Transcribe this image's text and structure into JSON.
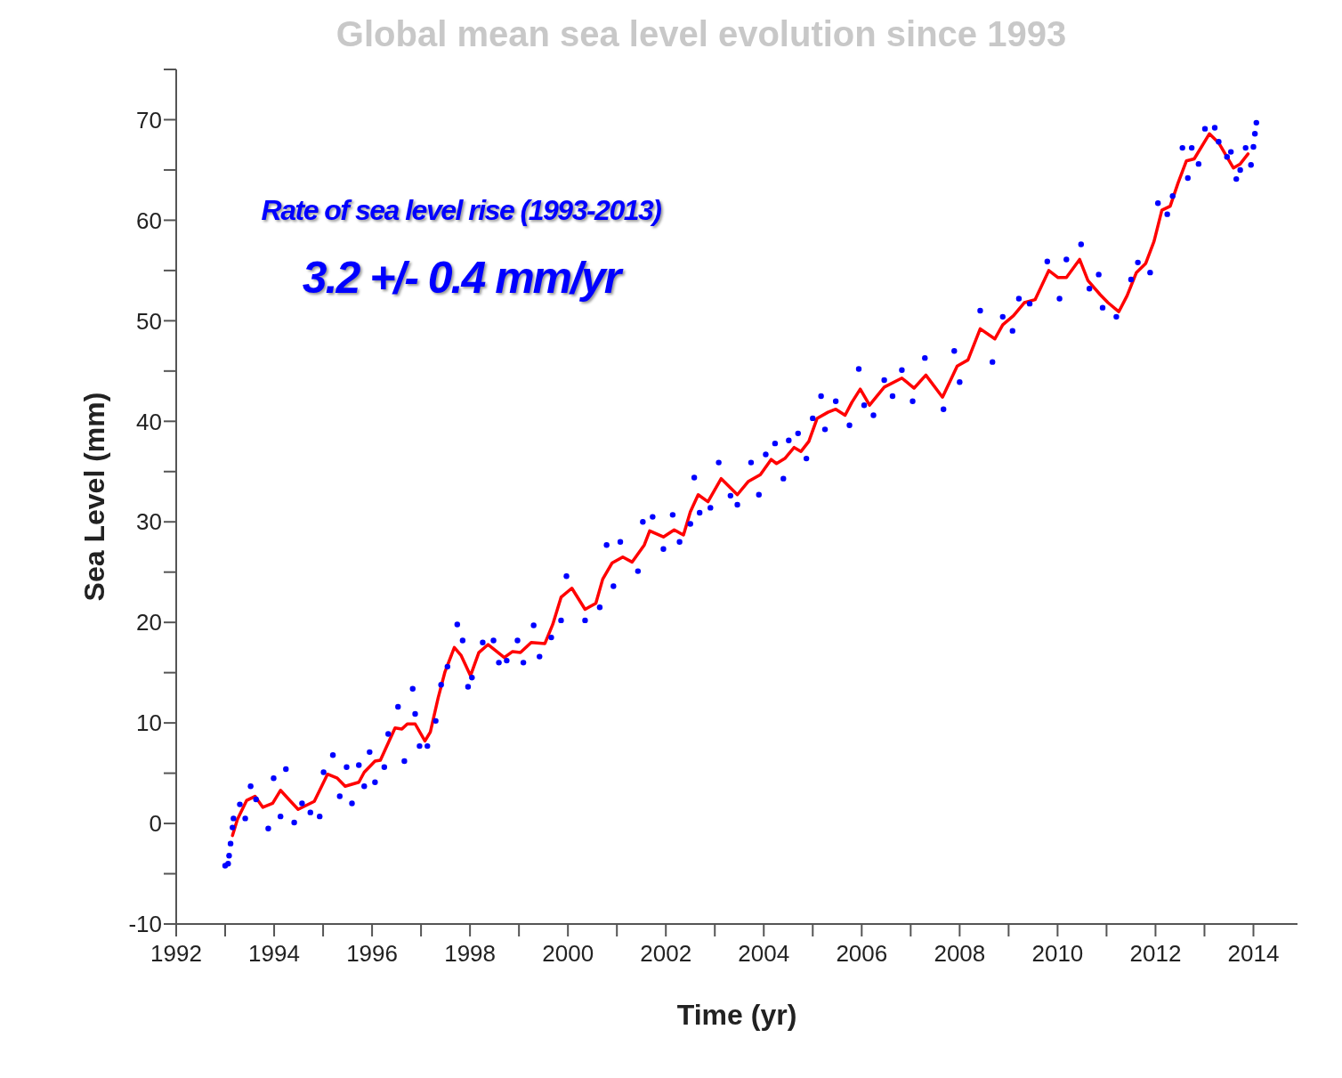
{
  "chart_data": {
    "type": "scatter",
    "title": "Global mean sea level evolution since 1993",
    "xlabel": "Time (yr)",
    "ylabel": "Sea Level (mm)",
    "annotations": [
      "Rate of sea level rise (1993-2013)",
      "3.2 +/- 0.4 mm/yr"
    ],
    "xlim": [
      1992,
      2014.9
    ],
    "xticks": [
      1992,
      {
        "value": 1993,
        "label": null
      },
      1994,
      {
        "value": 1995,
        "label": null
      },
      1996,
      {
        "value": 1997,
        "label": null
      },
      1998,
      {
        "value": 1999,
        "label": null
      },
      2000,
      {
        "value": 2001,
        "label": null
      },
      2002,
      {
        "value": 2003,
        "label": null
      },
      2004,
      {
        "value": 2005,
        "label": null
      },
      2006,
      {
        "value": 2007,
        "label": null
      },
      2008,
      {
        "value": 2009,
        "label": null
      },
      2010,
      {
        "value": 2011,
        "label": null
      },
      2012,
      {
        "value": 2013,
        "label": null
      },
      2014
    ],
    "ylim": [
      -10,
      75
    ],
    "yticks": [
      -10,
      {
        "value": -5,
        "label": null
      },
      0,
      {
        "value": 5,
        "label": null
      },
      10,
      {
        "value": 15,
        "label": null
      },
      20,
      {
        "value": 25,
        "label": null
      },
      30,
      {
        "value": 35,
        "label": null
      },
      40,
      {
        "value": 45,
        "label": null
      },
      50,
      {
        "value": 55,
        "label": null
      },
      60,
      {
        "value": 65,
        "label": null
      },
      70,
      {
        "value": 75,
        "label": null
      }
    ],
    "grid": false,
    "legend": false,
    "series": [
      {
        "marker": "circle",
        "color": "#0000ff",
        "x": [
          1993.0,
          1993.06,
          1993.08,
          1993.11,
          1993.15,
          1993.17,
          1993.3,
          1993.41,
          1993.52,
          1993.63,
          1993.88,
          1993.99,
          1994.13,
          1994.24,
          1994.41,
          1994.57,
          1994.74,
          1994.93,
          1995.01,
          1995.2,
          1995.34,
          1995.48,
          1995.59,
          1995.73,
          1995.84,
          1995.95,
          1996.06,
          1996.25,
          1996.33,
          1996.53,
          1996.66,
          1996.83,
          1996.88,
          1996.97,
          1997.13,
          1997.3,
          1997.41,
          1997.54,
          1997.74,
          1997.85,
          1997.96,
          1998.04,
          1998.26,
          1998.48,
          1998.59,
          1998.75,
          1998.97,
          1999.09,
          1999.3,
          1999.42,
          1999.66,
          1999.86,
          1999.97,
          2000.35,
          2000.65,
          2000.79,
          2000.93,
          2001.07,
          2001.43,
          2001.53,
          2001.73,
          2001.95,
          2002.14,
          2002.28,
          2002.5,
          2002.58,
          2002.69,
          2002.91,
          2003.08,
          2003.32,
          2003.46,
          2003.74,
          2003.9,
          2004.04,
          2004.23,
          2004.4,
          2004.51,
          2004.7,
          2004.87,
          2005.0,
          2005.17,
          2005.25,
          2005.47,
          2005.75,
          2005.94,
          2006.05,
          2006.24,
          2006.46,
          2006.63,
          2006.82,
          2007.04,
          2007.29,
          2007.67,
          2007.89,
          2008.0,
          2008.42,
          2008.67,
          2008.88,
          2009.08,
          2009.21,
          2009.43,
          2009.79,
          2010.04,
          2010.18,
          2010.48,
          2010.65,
          2010.84,
          2010.92,
          2011.2,
          2011.5,
          2011.64,
          2011.89,
          2012.05,
          2012.24,
          2012.35,
          2012.55,
          2012.66,
          2012.74,
          2012.88,
          2013.01,
          2013.21,
          2013.29,
          2013.46,
          2013.54,
          2013.65,
          2013.73,
          2013.84,
          2013.95,
          2014.0,
          2014.03,
          2014.06
        ],
        "values": [
          -4.2,
          -4.0,
          -3.2,
          -2.0,
          -0.4,
          0.5,
          1.9,
          0.5,
          3.7,
          2.4,
          -0.5,
          4.5,
          0.7,
          5.4,
          0.1,
          2.0,
          1.1,
          0.7,
          5.1,
          6.8,
          2.7,
          5.6,
          2.0,
          5.8,
          3.7,
          7.1,
          4.1,
          5.6,
          8.9,
          11.6,
          6.2,
          13.4,
          10.9,
          7.7,
          7.7,
          10.2,
          13.8,
          15.6,
          19.8,
          18.2,
          13.6,
          14.5,
          18.0,
          18.2,
          16.0,
          16.2,
          18.2,
          16.0,
          19.7,
          16.6,
          18.5,
          20.2,
          24.6,
          20.2,
          21.5,
          27.7,
          23.6,
          28.0,
          25.1,
          30.0,
          30.5,
          27.3,
          30.7,
          28.0,
          29.8,
          34.4,
          30.9,
          31.4,
          35.9,
          32.6,
          31.7,
          35.9,
          32.7,
          36.7,
          37.8,
          34.3,
          38.1,
          38.8,
          36.3,
          40.3,
          42.5,
          39.2,
          42.0,
          39.6,
          45.2,
          41.6,
          40.6,
          44.1,
          42.5,
          45.1,
          42.0,
          46.3,
          41.2,
          47.0,
          43.9,
          51.0,
          45.9,
          50.4,
          49.0,
          52.2,
          51.7,
          55.9,
          52.2,
          56.1,
          57.6,
          53.2,
          54.6,
          51.3,
          50.4,
          54.1,
          55.8,
          54.8,
          61.7,
          60.6,
          62.4,
          67.2,
          64.2,
          67.2,
          65.6,
          69.1,
          69.2,
          67.8,
          66.3,
          66.8,
          64.1,
          65.0,
          67.2,
          65.5,
          67.3,
          68.6,
          69.7
        ]
      },
      {
        "type": "line",
        "color": "#ff0000",
        "x": [
          1993.15,
          1993.25,
          1993.44,
          1993.61,
          1993.77,
          1993.97,
          1994.13,
          1994.3,
          1994.49,
          1994.82,
          1995.09,
          1995.29,
          1995.45,
          1995.73,
          1995.84,
          1996.06,
          1996.17,
          1996.47,
          1996.61,
          1996.72,
          1996.88,
          1997.08,
          1997.19,
          1997.35,
          1997.49,
          1997.68,
          1997.82,
          1998.01,
          1998.18,
          1998.37,
          1998.7,
          1998.87,
          1999.03,
          1999.25,
          1999.53,
          1999.69,
          1999.86,
          2000.08,
          2000.35,
          2000.57,
          2000.71,
          2000.9,
          2001.12,
          2001.31,
          2001.56,
          2001.67,
          2001.95,
          2002.17,
          2002.36,
          2002.5,
          2002.66,
          2002.86,
          2003.13,
          2003.46,
          2003.68,
          2003.93,
          2004.15,
          2004.26,
          2004.43,
          2004.62,
          2004.76,
          2004.92,
          2005.09,
          2005.31,
          2005.47,
          2005.66,
          2005.8,
          2005.97,
          2006.16,
          2006.46,
          2006.82,
          2007.07,
          2007.31,
          2007.65,
          2007.95,
          2008.17,
          2008.42,
          2008.72,
          2008.88,
          2009.1,
          2009.32,
          2009.54,
          2009.82,
          2010.01,
          2010.18,
          2010.45,
          2010.62,
          2010.87,
          2011.03,
          2011.25,
          2011.42,
          2011.61,
          2011.8,
          2011.97,
          2012.13,
          2012.3,
          2012.46,
          2012.63,
          2012.79,
          2013.1,
          2013.29,
          2013.59,
          2013.73,
          2013.89
        ],
        "values": [
          -1.2,
          0.4,
          2.3,
          2.7,
          1.6,
          2.0,
          3.3,
          2.4,
          1.4,
          2.2,
          4.9,
          4.5,
          3.7,
          4.1,
          5.1,
          6.2,
          6.3,
          9.5,
          9.4,
          9.9,
          9.9,
          8.2,
          9.1,
          12.5,
          15.1,
          17.5,
          16.7,
          14.7,
          17.0,
          17.8,
          16.5,
          17.1,
          17.0,
          18.0,
          17.9,
          19.8,
          22.5,
          23.4,
          21.3,
          21.9,
          24.3,
          25.9,
          26.5,
          26.0,
          27.7,
          29.1,
          28.5,
          29.2,
          28.7,
          31.0,
          32.7,
          32.0,
          34.3,
          32.7,
          34.0,
          34.7,
          36.2,
          35.8,
          36.3,
          37.4,
          37.0,
          38.0,
          40.3,
          40.9,
          41.2,
          40.6,
          41.9,
          43.2,
          41.6,
          43.4,
          44.3,
          43.3,
          44.6,
          42.4,
          45.5,
          46.1,
          49.2,
          48.2,
          49.6,
          50.5,
          51.8,
          52.1,
          55.0,
          54.3,
          54.3,
          56.1,
          54.0,
          52.6,
          51.8,
          50.9,
          52.5,
          54.8,
          55.7,
          57.9,
          61.0,
          61.4,
          63.7,
          65.9,
          66.1,
          68.6,
          67.7,
          65.2,
          65.6,
          66.6
        ]
      }
    ]
  }
}
